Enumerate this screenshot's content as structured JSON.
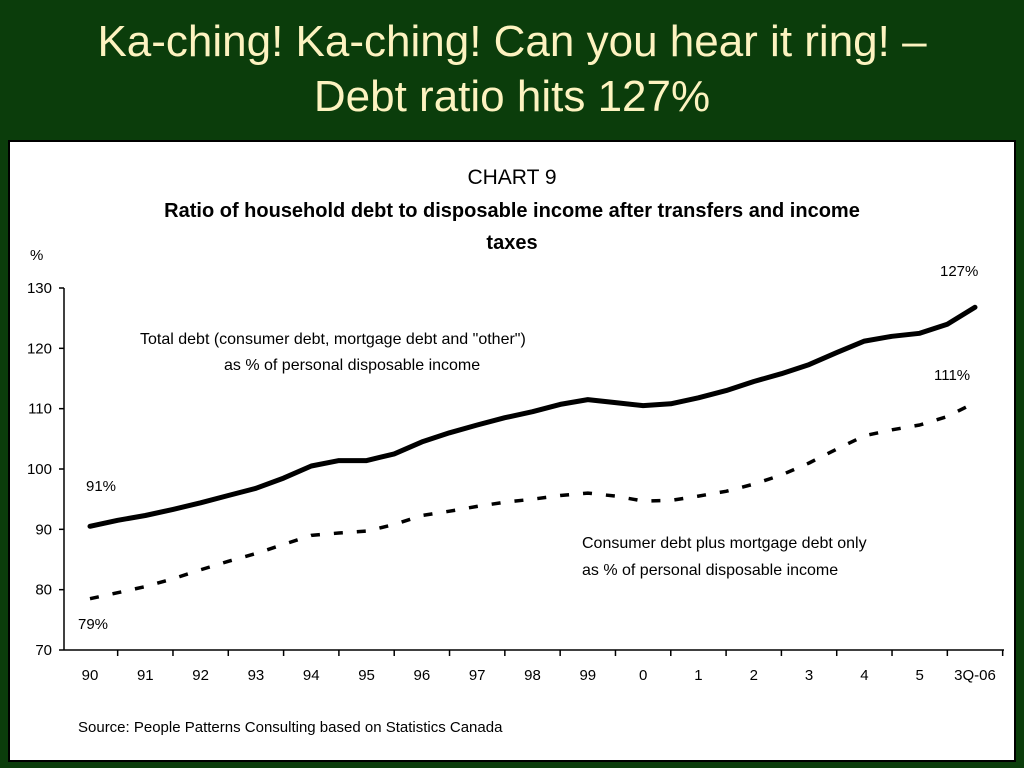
{
  "slide": {
    "title_line1": "Ka-ching! Ka-ching! Can you hear it ring! –",
    "title_line2": "Debt ratio hits 127%"
  },
  "colors": {
    "background": "#0b3d0b",
    "title_text": "#fdf3c0",
    "panel": "#ffffff",
    "series": "#000000"
  },
  "chart_data": {
    "type": "line",
    "title": "CHART 9",
    "subtitle_line1": "Ratio of household debt to disposable income after transfers and income",
    "subtitle_line2": "taxes",
    "ylabel": "%",
    "ylim": [
      70,
      130
    ],
    "yticks": [
      130,
      120,
      110,
      100,
      90,
      80,
      70
    ],
    "categories": [
      "90",
      "91",
      "92",
      "93",
      "94",
      "95",
      "96",
      "97",
      "98",
      "99",
      "0",
      "1",
      "2",
      "3",
      "4",
      "5",
      "3Q-06"
    ],
    "grid": false,
    "series": [
      {
        "style": "solid",
        "x": [
          0,
          0.5,
          1,
          1.5,
          2,
          2.5,
          3,
          3.5,
          4,
          4.5,
          5,
          5.5,
          6,
          6.5,
          7,
          7.5,
          8,
          8.5,
          9,
          9.5,
          10,
          10.5,
          11,
          11.5,
          12,
          12.5,
          13,
          13.5,
          14,
          14.5,
          15,
          15.5,
          16
        ],
        "values": [
          90.5,
          91.5,
          92.3,
          93.3,
          94.4,
          95.6,
          96.8,
          98.5,
          100.5,
          101.4,
          101.4,
          102.5,
          104.5,
          106,
          107.3,
          108.5,
          109.5,
          110.7,
          111.5,
          111,
          110.5,
          110.8,
          111.8,
          113,
          114.5,
          115.8,
          117.3,
          119.3,
          121.2,
          122,
          122.5,
          124,
          126.8
        ]
      },
      {
        "style": "dashed",
        "x": [
          0,
          0.5,
          1,
          1.5,
          2,
          2.5,
          3,
          3.5,
          4,
          4.5,
          5,
          5.5,
          6,
          6.5,
          7,
          7.5,
          8,
          8.5,
          9,
          9.5,
          10,
          10.5,
          11,
          11.5,
          12,
          12.5,
          13,
          13.5,
          14,
          14.5,
          15,
          15.5,
          16
        ],
        "values": [
          78.5,
          79.5,
          80.5,
          81.8,
          83.3,
          84.7,
          86,
          87.5,
          89,
          89.4,
          89.7,
          90.8,
          92.3,
          93,
          93.8,
          94.5,
          95,
          95.6,
          96,
          95.5,
          94.7,
          94.8,
          95.5,
          96.3,
          97.5,
          99,
          101,
          103.3,
          105.5,
          106.5,
          107.3,
          108.7,
          111
        ]
      }
    ],
    "annotations": {
      "total_start": "91%",
      "total_end": "127%",
      "consumer_start": "79%",
      "consumer_end": "111%",
      "total_label_line1": "Total debt (consumer debt, mortgage debt and \"other\")",
      "total_label_line2": "as % of personal disposable income",
      "consumer_label_line1": "Consumer debt plus mortgage debt only",
      "consumer_label_line2": "as % of personal disposable income"
    },
    "source": "Source: People Patterns Consulting based on Statistics Canada"
  }
}
